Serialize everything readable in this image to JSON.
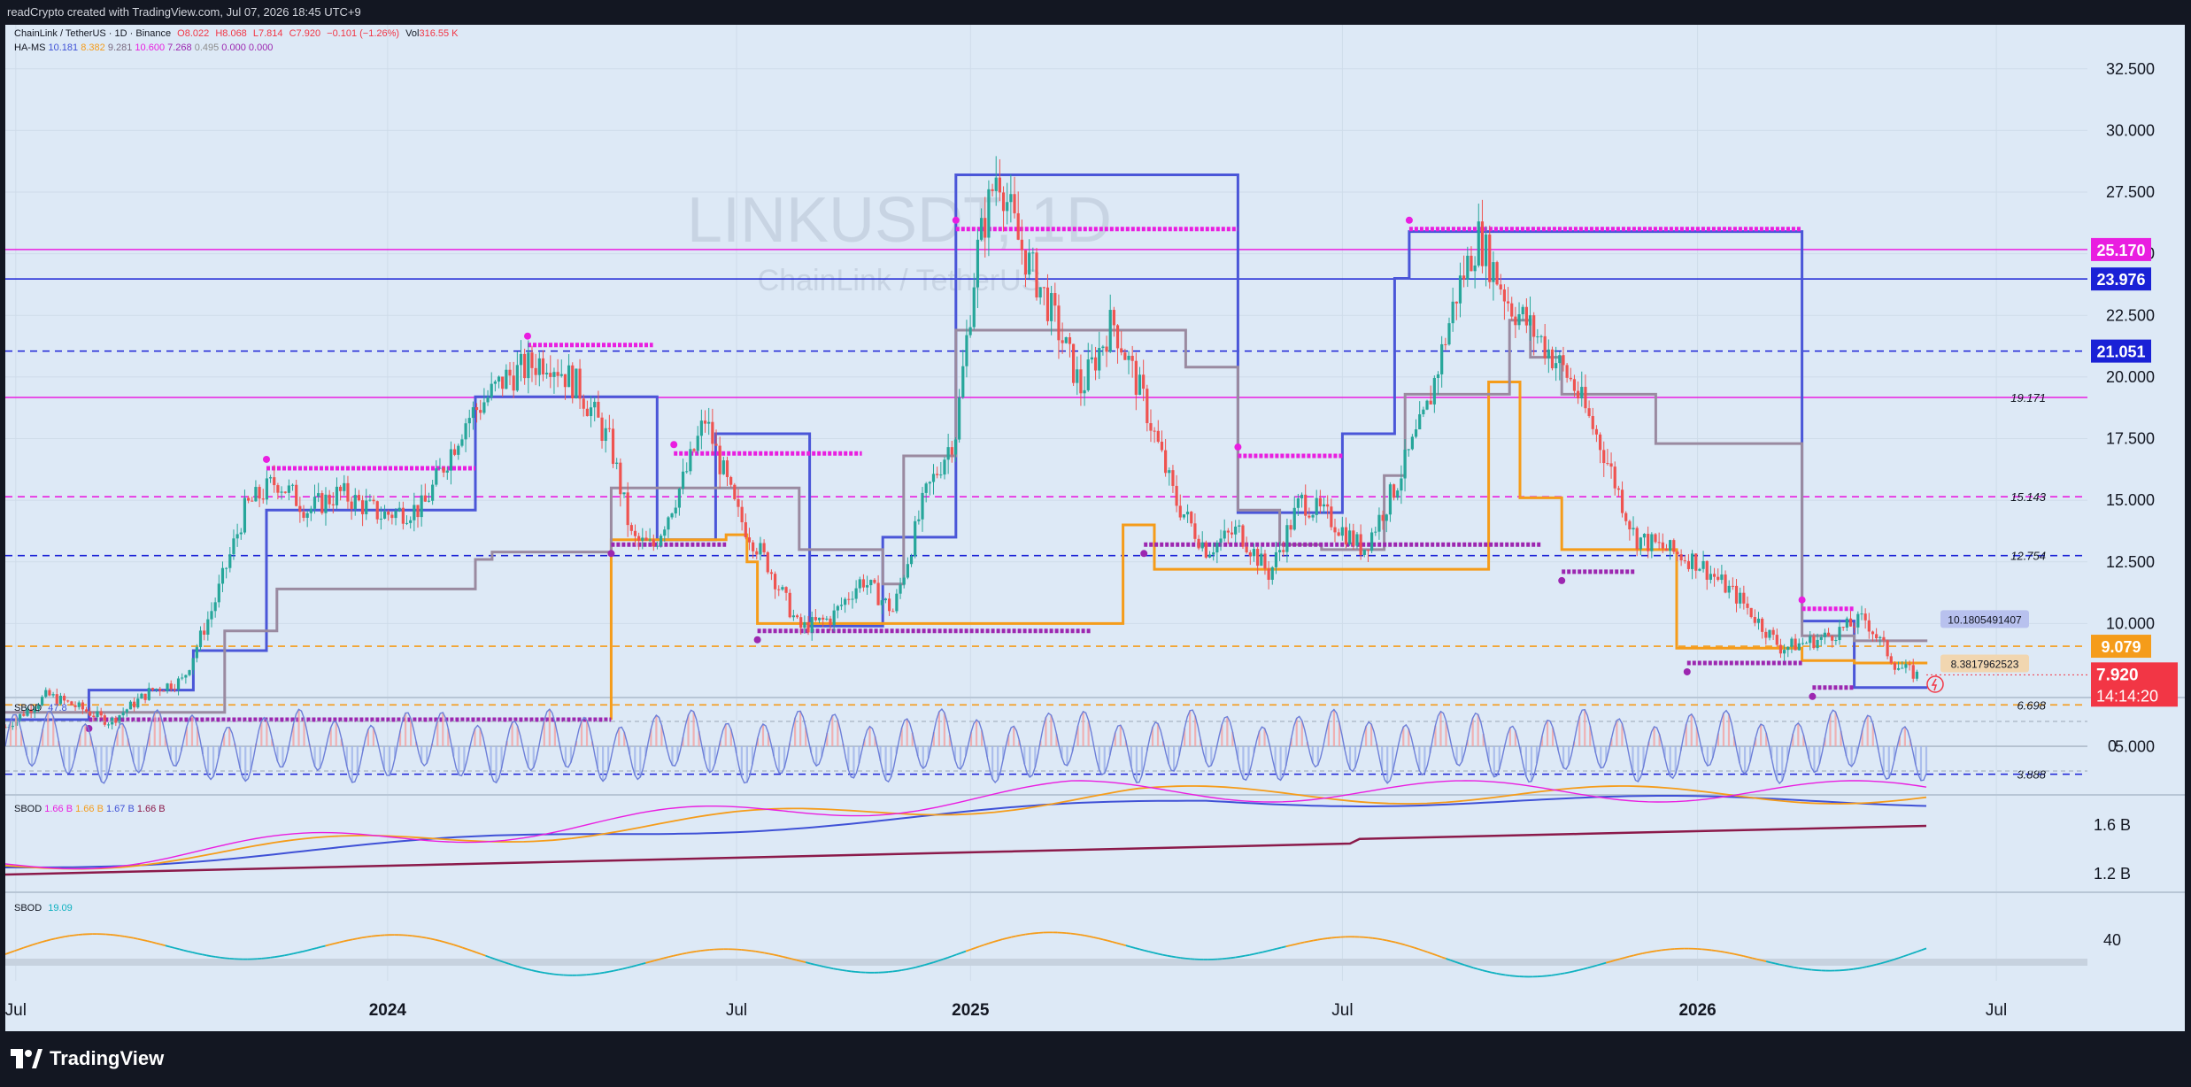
{
  "topbar": {
    "title": "readCrypto created with TradingView.com, Jul 07, 2026 18:45 UTC+9"
  },
  "legend": {
    "symbol": "ChainLink / TetherUS · 1D · Binance",
    "ohlc": {
      "o": "O8.022",
      "h": "H8.068",
      "l": "L7.814",
      "c": "C7.920",
      "chg": "−0.101 (−1.26%)"
    },
    "vol_label": "Vol",
    "vol_value": "316.55 K",
    "hams_label": "HA-MS",
    "hams_values": [
      {
        "v": "10.181",
        "color": "#3f51d6"
      },
      {
        "v": "8.382",
        "color": "#f59c1a"
      },
      {
        "v": "9.281",
        "color": "#7a6b80"
      },
      {
        "v": "10.600",
        "color": "#e91ee0"
      },
      {
        "v": "7.268",
        "color": "#9c27b0"
      },
      {
        "v": "0.495",
        "color": "#8d8d8d"
      },
      {
        "v": "0.000",
        "color": "#9c27b0"
      },
      {
        "v": "0.000",
        "color": "#9c27b0"
      }
    ],
    "sbod1_label": "SBOD",
    "sbod1_value": "47.8",
    "sbod2_label": "SBOD",
    "sbod2_values": [
      {
        "v": "1.66 B",
        "color": "#e91ee0"
      },
      {
        "v": "1.66 B",
        "color": "#f59c1a"
      },
      {
        "v": "1.67 B",
        "color": "#3f51d6"
      },
      {
        "v": "1.66 B",
        "color": "#8b1a4a"
      }
    ],
    "sbod3_label": "SBOD",
    "sbod3_value": "19.09"
  },
  "watermark": {
    "symbol": "LINKUSDT, 1D",
    "name": "ChainLink / TetherUS"
  },
  "chart_data": {
    "type": "line",
    "title": "ChainLink / TetherUS · 1D · Binance",
    "y_ticks": [
      "32.500",
      "30.000",
      "27.500",
      "25.000",
      "22.500",
      "20.000",
      "17.500",
      "15.000",
      "12.500",
      "10.000",
      "5.000"
    ],
    "ylim": [
      2.2,
      34
    ],
    "x_ticks": [
      "Jul",
      "2024",
      "Jul",
      "2025",
      "Jul",
      "2026",
      "Jul"
    ],
    "price_path": [
      {
        "t": 0.0,
        "p": 5.8
      },
      {
        "t": 0.02,
        "p": 7.1
      },
      {
        "t": 0.035,
        "p": 6.6
      },
      {
        "t": 0.05,
        "p": 6.0
      },
      {
        "t": 0.07,
        "p": 7.3
      },
      {
        "t": 0.085,
        "p": 7.7
      },
      {
        "t": 0.1,
        "p": 10.8
      },
      {
        "t": 0.115,
        "p": 14.7
      },
      {
        "t": 0.13,
        "p": 15.8
      },
      {
        "t": 0.145,
        "p": 14.6
      },
      {
        "t": 0.16,
        "p": 15.3
      },
      {
        "t": 0.18,
        "p": 14.4
      },
      {
        "t": 0.2,
        "p": 14.7
      },
      {
        "t": 0.22,
        "p": 18.2
      },
      {
        "t": 0.24,
        "p": 20.0
      },
      {
        "t": 0.26,
        "p": 20.8
      },
      {
        "t": 0.275,
        "p": 19.5
      },
      {
        "t": 0.29,
        "p": 17.2
      },
      {
        "t": 0.3,
        "p": 13.4
      },
      {
        "t": 0.31,
        "p": 13.1
      },
      {
        "t": 0.325,
        "p": 15.9
      },
      {
        "t": 0.335,
        "p": 18.3
      },
      {
        "t": 0.35,
        "p": 14.5
      },
      {
        "t": 0.365,
        "p": 12.4
      },
      {
        "t": 0.38,
        "p": 9.8
      },
      {
        "t": 0.395,
        "p": 10.2
      },
      {
        "t": 0.41,
        "p": 11.8
      },
      {
        "t": 0.425,
        "p": 10.5
      },
      {
        "t": 0.44,
        "p": 15.1
      },
      {
        "t": 0.455,
        "p": 17.8
      },
      {
        "t": 0.465,
        "p": 25.0
      },
      {
        "t": 0.475,
        "p": 28.5
      },
      {
        "t": 0.485,
        "p": 25.5
      },
      {
        "t": 0.5,
        "p": 22.8
      },
      {
        "t": 0.515,
        "p": 19.5
      },
      {
        "t": 0.53,
        "p": 22.3
      },
      {
        "t": 0.545,
        "p": 19.0
      },
      {
        "t": 0.56,
        "p": 15.0
      },
      {
        "t": 0.575,
        "p": 13.0
      },
      {
        "t": 0.59,
        "p": 13.8
      },
      {
        "t": 0.605,
        "p": 12.0
      },
      {
        "t": 0.62,
        "p": 15.0
      },
      {
        "t": 0.635,
        "p": 14.2
      },
      {
        "t": 0.65,
        "p": 13.0
      },
      {
        "t": 0.665,
        "p": 15.5
      },
      {
        "t": 0.68,
        "p": 18.5
      },
      {
        "t": 0.695,
        "p": 23.5
      },
      {
        "t": 0.705,
        "p": 25.7
      },
      {
        "t": 0.72,
        "p": 23.0
      },
      {
        "t": 0.735,
        "p": 21.5
      },
      {
        "t": 0.75,
        "p": 19.8
      },
      {
        "t": 0.765,
        "p": 17.0
      },
      {
        "t": 0.78,
        "p": 13.5
      },
      {
        "t": 0.795,
        "p": 13.0
      },
      {
        "t": 0.81,
        "p": 12.5
      },
      {
        "t": 0.83,
        "p": 11.0
      },
      {
        "t": 0.85,
        "p": 9.0
      },
      {
        "t": 0.87,
        "p": 9.4
      },
      {
        "t": 0.89,
        "p": 10.2
      },
      {
        "t": 0.905,
        "p": 8.3
      },
      {
        "t": 0.915,
        "p": 7.9
      }
    ],
    "horizontal_levels": [
      {
        "value": 25.17,
        "label": "25.170",
        "style": "solid",
        "color": "#e91ee0",
        "badge": true
      },
      {
        "value": 23.976,
        "label": "23.976",
        "style": "solid",
        "color": "#1a21d6",
        "badge": true
      },
      {
        "value": 21.051,
        "label": "21.051",
        "style": "dashed",
        "color": "#1a21d6",
        "badge": true
      },
      {
        "value": 19.171,
        "label": "19.171",
        "style": "solid",
        "color": "#e91ee0",
        "badge": false
      },
      {
        "value": 15.143,
        "label": "15.143",
        "style": "dashed",
        "color": "#e91ee0",
        "badge": false
      },
      {
        "value": 12.754,
        "label": "12.754",
        "style": "dashed",
        "color": "#1a21d6",
        "badge": false
      },
      {
        "value": 9.079,
        "label": "9.079",
        "style": "dashed",
        "color": "#f59c1a",
        "badge": true
      },
      {
        "value": 6.698,
        "label": "6.698",
        "style": "dashed",
        "color": "#f59c1a",
        "badge": false
      },
      {
        "value": 3.888,
        "label": "3.888",
        "style": "dashed",
        "color": "#1a21d6",
        "badge": false
      }
    ],
    "last_price": {
      "value": 7.92,
      "label": "7.920",
      "countdown": "14:14:20",
      "color": "#f23645"
    },
    "tags": [
      {
        "value": 10.1805491407,
        "label": "10.1805491407",
        "color": "#b8c1ee"
      },
      {
        "value": 8.3817962523,
        "label": "8.3817962523",
        "color": "#f1d6b0"
      }
    ],
    "step_lines": [
      {
        "name": "HA-MS blue",
        "color": "#4a56d8",
        "points": [
          [
            0.0,
            6.1
          ],
          [
            0.04,
            6.1
          ],
          [
            0.04,
            7.3
          ],
          [
            0.09,
            7.3
          ],
          [
            0.09,
            8.9
          ],
          [
            0.125,
            8.9
          ],
          [
            0.125,
            14.6
          ],
          [
            0.225,
            14.6
          ],
          [
            0.225,
            19.2
          ],
          [
            0.312,
            19.2
          ],
          [
            0.312,
            13.4
          ],
          [
            0.34,
            13.4
          ],
          [
            0.34,
            17.7
          ],
          [
            0.385,
            17.7
          ],
          [
            0.385,
            9.9
          ],
          [
            0.42,
            9.9
          ],
          [
            0.42,
            13.5
          ],
          [
            0.455,
            13.5
          ],
          [
            0.455,
            28.2
          ],
          [
            0.59,
            28.2
          ],
          [
            0.59,
            14.5
          ],
          [
            0.64,
            14.5
          ],
          [
            0.64,
            17.7
          ],
          [
            0.665,
            17.7
          ],
          [
            0.665,
            24.0
          ],
          [
            0.672,
            24.0
          ],
          [
            0.672,
            25.9
          ],
          [
            0.86,
            25.9
          ],
          [
            0.86,
            10.1
          ],
          [
            0.885,
            10.1
          ],
          [
            0.885,
            7.4
          ],
          [
            0.92,
            7.4
          ]
        ]
      },
      {
        "name": "HA-MS orange",
        "color": "#f59c1a",
        "points": [
          [
            0.29,
            6.1
          ],
          [
            0.29,
            13.4
          ],
          [
            0.345,
            13.4
          ],
          [
            0.345,
            13.6
          ],
          [
            0.355,
            13.6
          ],
          [
            0.355,
            12.5
          ],
          [
            0.36,
            12.5
          ],
          [
            0.36,
            10.0
          ],
          [
            0.535,
            10.0
          ],
          [
            0.535,
            14.0
          ],
          [
            0.55,
            14.0
          ],
          [
            0.55,
            12.2
          ],
          [
            0.71,
            12.2
          ],
          [
            0.71,
            19.8
          ],
          [
            0.725,
            19.8
          ],
          [
            0.725,
            15.1
          ],
          [
            0.745,
            15.1
          ],
          [
            0.745,
            13.0
          ],
          [
            0.8,
            13.0
          ],
          [
            0.8,
            9.0
          ],
          [
            0.86,
            9.0
          ],
          [
            0.86,
            8.5
          ],
          [
            0.885,
            8.5
          ],
          [
            0.885,
            8.4
          ],
          [
            0.92,
            8.4
          ]
        ]
      },
      {
        "name": "HA-MS grey",
        "color": "#9a8aa0",
        "points": [
          [
            0.0,
            6.4
          ],
          [
            0.105,
            6.4
          ],
          [
            0.105,
            9.7
          ],
          [
            0.13,
            9.7
          ],
          [
            0.13,
            11.4
          ],
          [
            0.225,
            11.4
          ],
          [
            0.225,
            12.6
          ],
          [
            0.233,
            12.6
          ],
          [
            0.233,
            12.9
          ],
          [
            0.29,
            12.9
          ],
          [
            0.29,
            15.5
          ],
          [
            0.38,
            15.5
          ],
          [
            0.38,
            13.0
          ],
          [
            0.42,
            13.0
          ],
          [
            0.42,
            11.6
          ],
          [
            0.43,
            11.6
          ],
          [
            0.43,
            16.8
          ],
          [
            0.455,
            16.8
          ],
          [
            0.455,
            21.9
          ],
          [
            0.565,
            21.9
          ],
          [
            0.565,
            20.4
          ],
          [
            0.59,
            20.4
          ],
          [
            0.59,
            14.6
          ],
          [
            0.61,
            14.6
          ],
          [
            0.61,
            13.2
          ],
          [
            0.63,
            13.2
          ],
          [
            0.63,
            13.0
          ],
          [
            0.66,
            13.0
          ],
          [
            0.66,
            16.0
          ],
          [
            0.67,
            16.0
          ],
          [
            0.67,
            19.3
          ],
          [
            0.72,
            19.3
          ],
          [
            0.72,
            22.3
          ],
          [
            0.73,
            22.3
          ],
          [
            0.73,
            20.8
          ],
          [
            0.745,
            20.8
          ],
          [
            0.745,
            19.3
          ],
          [
            0.79,
            19.3
          ],
          [
            0.79,
            17.3
          ],
          [
            0.86,
            17.3
          ],
          [
            0.86,
            9.5
          ],
          [
            0.885,
            9.5
          ],
          [
            0.885,
            9.3
          ],
          [
            0.92,
            9.3
          ]
        ]
      }
    ],
    "dot_lines": [
      {
        "color": "#e91ee0",
        "value": 16.3,
        "t0": 0.125,
        "t1": 0.225
      },
      {
        "color": "#e91ee0",
        "value": 21.3,
        "t0": 0.25,
        "t1": 0.31
      },
      {
        "color": "#e91ee0",
        "value": 16.9,
        "t0": 0.32,
        "t1": 0.41
      },
      {
        "color": "#e91ee0",
        "value": 26.0,
        "t0": 0.455,
        "t1": 0.59
      },
      {
        "color": "#e91ee0",
        "value": 26.0,
        "t0": 0.672,
        "t1": 0.86
      },
      {
        "color": "#e91ee0",
        "value": 16.8,
        "t0": 0.59,
        "t1": 0.64
      },
      {
        "color": "#e91ee0",
        "value": 10.6,
        "t0": 0.86,
        "t1": 0.885
      },
      {
        "color": "#9c27b0",
        "value": 6.1,
        "t0": 0.04,
        "t1": 0.29
      },
      {
        "color": "#9c27b0",
        "value": 9.7,
        "t0": 0.36,
        "t1": 0.52
      },
      {
        "color": "#9c27b0",
        "value": 13.2,
        "t0": 0.545,
        "t1": 0.735
      },
      {
        "color": "#9c27b0",
        "value": 13.2,
        "t0": 0.29,
        "t1": 0.345
      },
      {
        "color": "#9c27b0",
        "value": 12.1,
        "t0": 0.745,
        "t1": 0.78
      },
      {
        "color": "#9c27b0",
        "value": 8.4,
        "t0": 0.805,
        "t1": 0.86
      },
      {
        "color": "#9c27b0",
        "value": 7.4,
        "t0": 0.865,
        "t1": 0.885
      }
    ],
    "sbod1": {
      "zero_label": "0"
    },
    "sbod2": {
      "y_ticks": [
        "1.6 B",
        "1.2 B"
      ]
    },
    "sbod3": {
      "y_ticks": [
        "40"
      ]
    }
  },
  "branding": {
    "name": "TradingView"
  }
}
